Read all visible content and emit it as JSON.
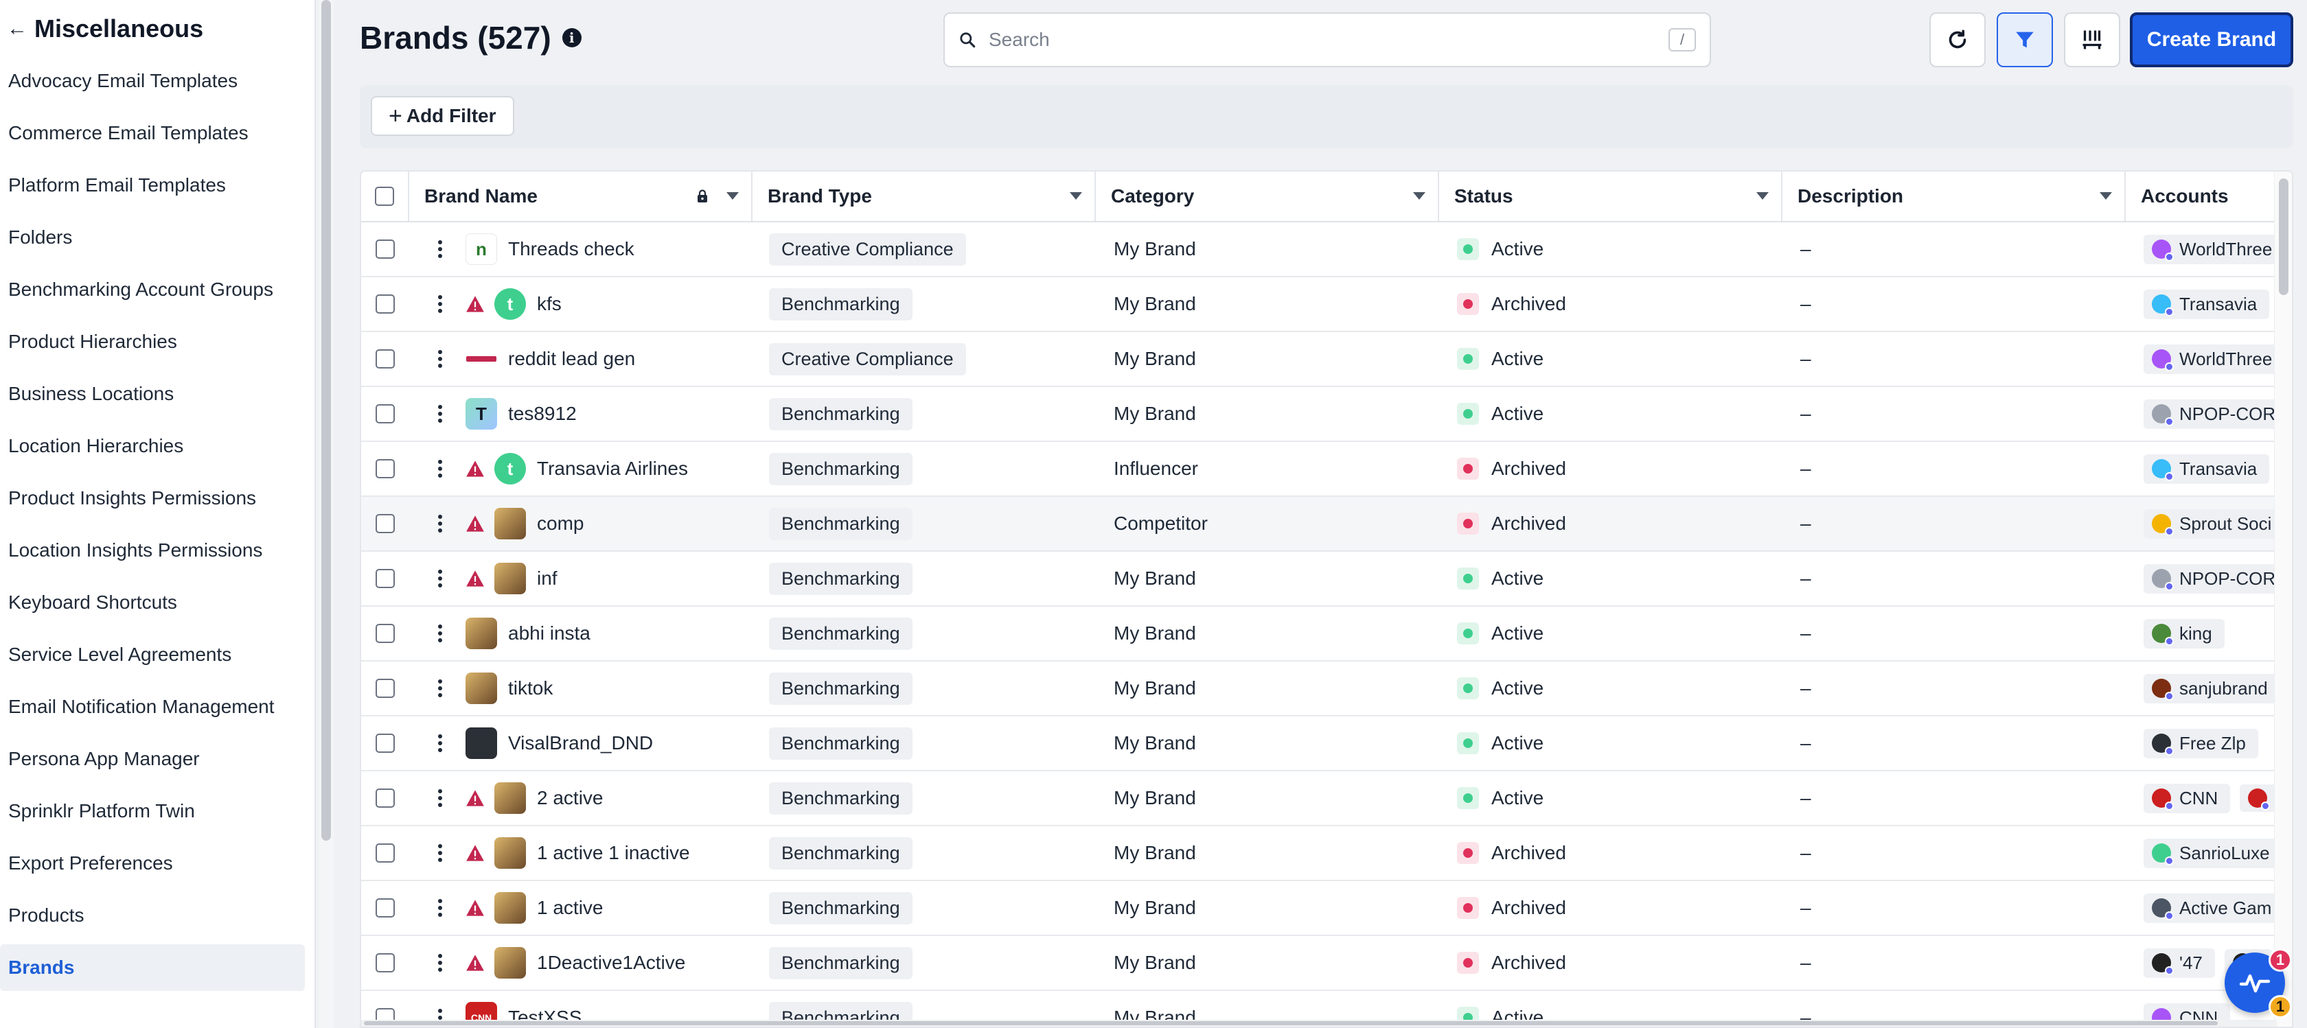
{
  "sidebar": {
    "title": "Miscellaneous",
    "items": [
      {
        "label": "Advocacy Email Templates"
      },
      {
        "label": "Commerce Email Templates"
      },
      {
        "label": "Platform Email Templates"
      },
      {
        "label": "Folders"
      },
      {
        "label": "Benchmarking Account Groups"
      },
      {
        "label": "Product Hierarchies"
      },
      {
        "label": "Business Locations"
      },
      {
        "label": "Location Hierarchies"
      },
      {
        "label": "Product Insights Permissions"
      },
      {
        "label": "Location Insights Permissions"
      },
      {
        "label": "Keyboard Shortcuts"
      },
      {
        "label": "Service Level Agreements"
      },
      {
        "label": "Email Notification Management"
      },
      {
        "label": "Persona App Manager"
      },
      {
        "label": "Sprinklr Platform Twin"
      },
      {
        "label": "Export Preferences"
      },
      {
        "label": "Products"
      },
      {
        "label": "Brands"
      }
    ],
    "active_item": "Brands"
  },
  "header": {
    "title": "Brands (527)",
    "search_placeholder": "Search",
    "search_shortcut": "/",
    "create_button": "Create Brand",
    "add_filter": "Add Filter"
  },
  "table": {
    "columns": [
      "Brand Name",
      "Brand Type",
      "Category",
      "Status",
      "Description",
      "Accounts"
    ],
    "rows": [
      {
        "name": "Threads check",
        "warning": false,
        "logo": "n",
        "type": "Creative Compliance",
        "category": "My Brand",
        "status": "Active",
        "description": "–",
        "accounts": [
          "WorldThree"
        ]
      },
      {
        "name": "kfs",
        "warning": true,
        "logo": "t",
        "type": "Benchmarking",
        "category": "My Brand",
        "status": "Archived",
        "description": "–",
        "accounts": [
          "Transavia"
        ]
      },
      {
        "name": "reddit lead gen",
        "warning": false,
        "logo": "strip",
        "type": "Creative Compliance",
        "category": "My Brand",
        "status": "Active",
        "description": "–",
        "accounts": [
          "WorldThree"
        ]
      },
      {
        "name": "tes8912",
        "warning": false,
        "logo": "T",
        "type": "Benchmarking",
        "category": "My Brand",
        "status": "Active",
        "description": "–",
        "accounts": [
          "NPOP-COR"
        ]
      },
      {
        "name": "Transavia Airlines",
        "warning": true,
        "logo": "t",
        "type": "Benchmarking",
        "category": "Influencer",
        "status": "Archived",
        "description": "–",
        "accounts": [
          "Transavia"
        ]
      },
      {
        "name": "comp",
        "warning": true,
        "logo": "img",
        "type": "Benchmarking",
        "category": "Competitor",
        "status": "Archived",
        "description": "–",
        "accounts": [
          "Sprout Soci"
        ]
      },
      {
        "name": "inf",
        "warning": true,
        "logo": "img",
        "type": "Benchmarking",
        "category": "My Brand",
        "status": "Active",
        "description": "–",
        "accounts": [
          "NPOP-COR"
        ]
      },
      {
        "name": "abhi insta",
        "warning": false,
        "logo": "img",
        "type": "Benchmarking",
        "category": "My Brand",
        "status": "Active",
        "description": "–",
        "accounts": [
          "king"
        ]
      },
      {
        "name": "tiktok",
        "warning": false,
        "logo": "img",
        "type": "Benchmarking",
        "category": "My Brand",
        "status": "Active",
        "description": "–",
        "accounts": [
          "sanjubrand"
        ]
      },
      {
        "name": "VisalBrand_DND",
        "warning": false,
        "logo": "dark",
        "type": "Benchmarking",
        "category": "My Brand",
        "status": "Active",
        "description": "–",
        "accounts": [
          "Free Zlp"
        ]
      },
      {
        "name": "2 active",
        "warning": true,
        "logo": "img",
        "type": "Benchmarking",
        "category": "My Brand",
        "status": "Active",
        "description": "–",
        "accounts": [
          "CNN",
          ""
        ]
      },
      {
        "name": "1 active 1 inactive",
        "warning": true,
        "logo": "img",
        "type": "Benchmarking",
        "category": "My Brand",
        "status": "Archived",
        "description": "–",
        "accounts": [
          "SanrioLuxe"
        ]
      },
      {
        "name": "1 active",
        "warning": true,
        "logo": "img",
        "type": "Benchmarking",
        "category": "My Brand",
        "status": "Archived",
        "description": "–",
        "accounts": [
          "Active Gam"
        ]
      },
      {
        "name": "1Deactive1Active",
        "warning": true,
        "logo": "img",
        "type": "Benchmarking",
        "category": "My Brand",
        "status": "Archived",
        "description": "–",
        "accounts": [
          "'47",
          ""
        ]
      },
      {
        "name": "TestXSS",
        "warning": false,
        "logo": "cnn",
        "type": "Benchmarking",
        "category": "My Brand",
        "status": "Active",
        "description": "–",
        "accounts": [
          "CNN"
        ]
      }
    ]
  },
  "help_badges": {
    "top": "1",
    "bottom": "1"
  },
  "colors": {
    "accent": "#1f5fe6",
    "active_dot": "#3ecf8e",
    "archived_dot": "#e0315b",
    "warning": "#c2264f"
  }
}
